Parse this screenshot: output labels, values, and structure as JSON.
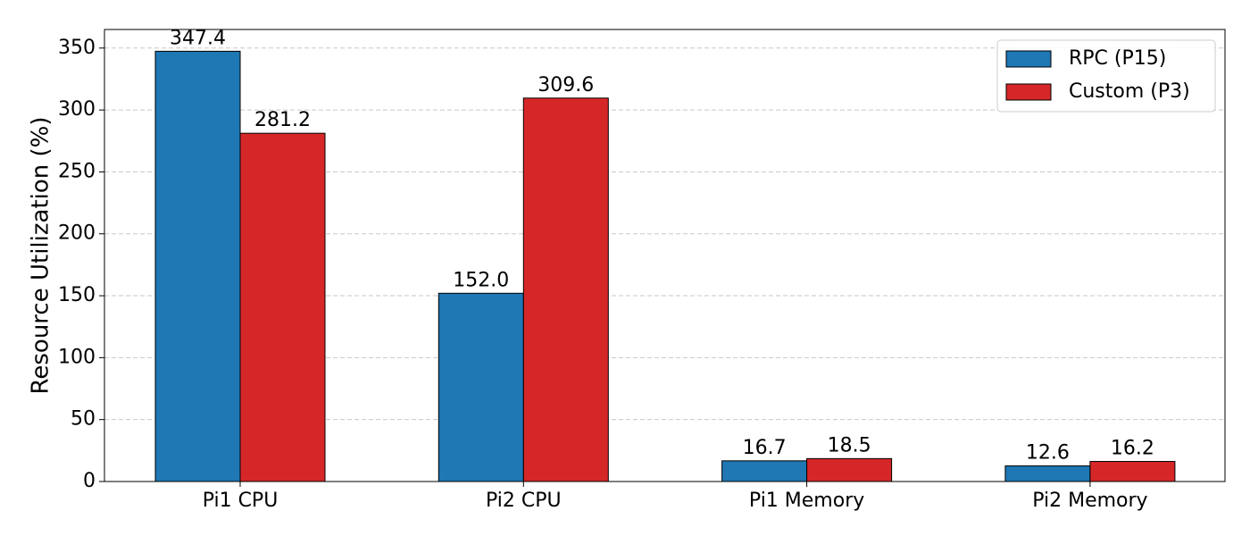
{
  "chart_data": {
    "type": "bar",
    "y_label": "Resource Utilization (%)",
    "categories": [
      "Pi1 CPU",
      "Pi2 CPU",
      "Pi1 Memory",
      "Pi2 Memory"
    ],
    "series": [
      {
        "name": "RPC (P15)",
        "color": "#1f77b4",
        "values": [
          347.4,
          152.0,
          16.7,
          12.6
        ],
        "value_labels": [
          "347.4",
          "152.0",
          "16.7",
          "12.6"
        ]
      },
      {
        "name": "Custom (P3)",
        "color": "#d62728",
        "values": [
          281.2,
          309.6,
          18.5,
          16.2
        ],
        "value_labels": [
          "281.2",
          "309.6",
          "18.5",
          "16.2"
        ]
      }
    ],
    "ylim": [
      0,
      365
    ],
    "yticks": [
      0,
      50,
      100,
      150,
      200,
      250,
      300,
      350
    ],
    "grid": true,
    "legend": "upper right"
  }
}
